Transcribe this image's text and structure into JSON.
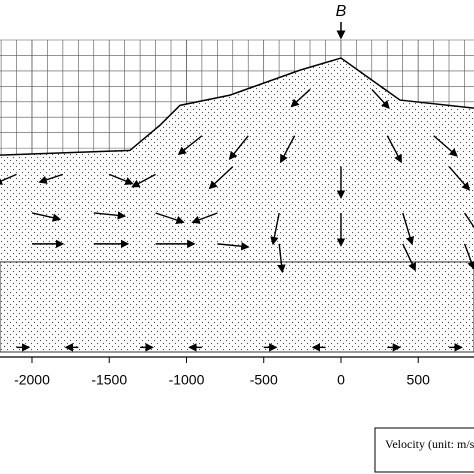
{
  "chart_data": {
    "type": "quiver",
    "annotation": {
      "text": "B",
      "x": 0
    },
    "legend_text": "Velocity (unit: m/s",
    "xlim": [
      -2207,
      861
    ],
    "ylim": [
      0,
      2020
    ],
    "xticks": [
      -2000,
      -1500,
      -1000,
      -500,
      0,
      500
    ],
    "grid": true,
    "surface": {
      "x": [
        -2207,
        -1366,
        -1172,
        -1042,
        -718,
        -265,
        0,
        382,
        861
      ],
      "y": [
        1275,
        1305,
        1468,
        1597,
        1663,
        1825,
        1903,
        1631,
        1579
      ]
    },
    "layer_top": 583,
    "color": "#000000",
    "vectors": {
      "x": [
        -2100,
        -1800,
        -1500,
        -1200,
        -900,
        -600,
        -300,
        300,
        600,
        -200,
        200,
        -700,
        0,
        700,
        -2000,
        -1600,
        -1200,
        -800,
        -400,
        0,
        400,
        800,
        -2000,
        -1600,
        -1200,
        -800,
        -400,
        400,
        800,
        -2100,
        -1700,
        -1300,
        -900,
        -500,
        -100,
        300,
        700
      ],
      "y": [
        1150,
        1150,
        1150,
        1150,
        1400,
        1400,
        1400,
        1400,
        1400,
        1700,
        1700,
        1200,
        1200,
        1200,
        900,
        900,
        900,
        900,
        900,
        900,
        900,
        900,
        700,
        700,
        700,
        700,
        700,
        700,
        700,
        30,
        30,
        30,
        30,
        30,
        30,
        30,
        30
      ],
      "u": [
        -140,
        -150,
        150,
        -150,
        -150,
        -120,
        -90,
        90,
        150,
        -120,
        110,
        -150,
        0,
        130,
        180,
        200,
        180,
        -160,
        -40,
        0,
        60,
        120,
        200,
        220,
        250,
        200,
        20,
        80,
        60,
        80,
        -80,
        80,
        -80,
        80,
        -80,
        80,
        80
      ],
      "v": [
        -60,
        -50,
        -60,
        -80,
        -120,
        -150,
        -170,
        -170,
        -130,
        -110,
        -120,
        -140,
        -200,
        -150,
        -40,
        -20,
        -60,
        -60,
        -200,
        -210,
        -200,
        -180,
        0,
        0,
        0,
        -20,
        -180,
        -170,
        -160,
        0,
        0,
        0,
        0,
        0,
        0,
        0,
        0
      ]
    }
  }
}
